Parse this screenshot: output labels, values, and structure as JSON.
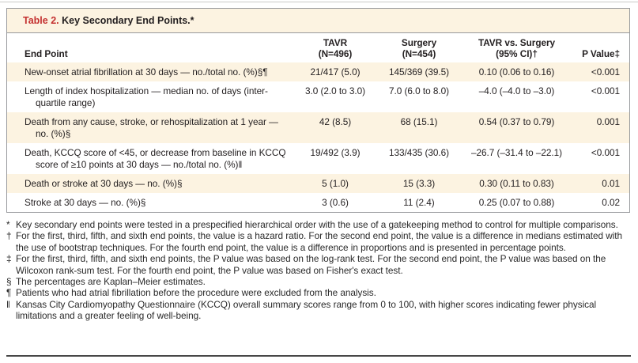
{
  "title_bar": {
    "prefix": "Table 2.",
    "title": "Key Secondary End Points.*"
  },
  "table": {
    "columns": [
      {
        "line1": "End Point",
        "line2": "",
        "marker": ""
      },
      {
        "line1": "TAVR",
        "line2": "(N=496)",
        "marker": ""
      },
      {
        "line1": "Surgery",
        "line2": "(N=454)",
        "marker": ""
      },
      {
        "line1": "TAVR vs. Surgery",
        "line2": "(95% CI)",
        "marker": "†"
      },
      {
        "line1": "P Value",
        "line2": "",
        "marker": "‡"
      }
    ],
    "rows": [
      {
        "endpoint": "New-onset atrial fibrillation at 30 days — no./total no. (%)",
        "marker": "§¶",
        "tavr": "21/417 (5.0)",
        "surgery": "145/369 (39.5)",
        "ci": "0.10 (0.06 to 0.16)",
        "p": "<0.001"
      },
      {
        "endpoint": "Length of index hospitalization — median no. of days (inter­quartile range)",
        "marker": "",
        "tavr": "3.0 (2.0 to 3.0)",
        "surgery": "7.0 (6.0 to 8.0)",
        "ci": "–4.0 (–4.0 to –3.0)",
        "p": "<0.001"
      },
      {
        "endpoint": "Death from any cause, stroke, or rehospitalization at 1 year — no. (%)",
        "marker": "§",
        "tavr": "42 (8.5)",
        "surgery": "68 (15.1)",
        "ci": "0.54 (0.37 to 0.79)",
        "p": "0.001"
      },
      {
        "endpoint": "Death, KCCQ score of <45, or decrease from baseline in KCCQ score of ≥10 points at 30 days — no./total no. (%)",
        "marker": "‖",
        "tavr": "19/492 (3.9)",
        "surgery": "133/435 (30.6)",
        "ci": "–26.7 (–31.4 to –22.1)",
        "p": "<0.001"
      },
      {
        "endpoint": "Death or stroke at 30 days — no. (%)",
        "marker": "§",
        "tavr": "5 (1.0)",
        "surgery": "15 (3.3)",
        "ci": "0.30 (0.11 to 0.83)",
        "p": "0.01"
      },
      {
        "endpoint": "Stroke at 30 days — no. (%)",
        "marker": "§",
        "tavr": "3 (0.6)",
        "surgery": "11 (2.4)",
        "ci": "0.25 (0.07 to 0.88)",
        "p": "0.02"
      }
    ]
  },
  "footnotes": [
    {
      "symbol": "*",
      "text": "Key secondary end points were tested in a prespecified hierarchical order with the use of a gatekeeping method to control for multiple com­parisons."
    },
    {
      "symbol": "†",
      "text": "For the first, third, fifth, and sixth end points, the value is a hazard ratio. For the second end point, the value is a difference in medians esti­mated with the use of bootstrap techniques. For the fourth end point, the value is a difference in proportions and is presented in percentage points."
    },
    {
      "symbol": "‡",
      "text": "For the first, third, fifth, and sixth end points, the P value was based on the log-rank test. For the second end point, the P value was based on the Wilcoxon rank-sum test. For the fourth end point, the P value was based on Fisher's exact test."
    },
    {
      "symbol": "§",
      "text": "The percentages are Kaplan–Meier estimates."
    },
    {
      "symbol": "¶",
      "text": "Patients who had atrial fibrillation before the procedure were excluded from the analysis."
    },
    {
      "symbol": "‖",
      "text": "Kansas City Cardiomyopathy Questionnaire (KCCQ) overall summary scores range from 0 to 100, with higher scores indicating fewer physi­cal limitations and a greater feeling of well-being."
    }
  ],
  "colors": {
    "accent_red": "#c43130",
    "row_cream": "#fcf3e1",
    "border_gray": "#97999c",
    "text": "#231f20"
  }
}
